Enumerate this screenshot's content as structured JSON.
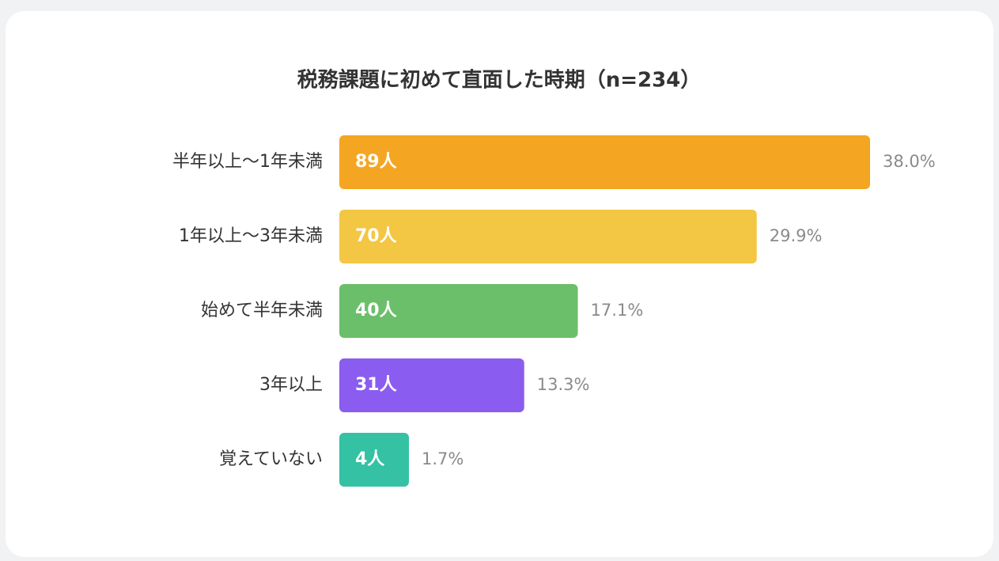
{
  "chart_data": {
    "type": "bar",
    "orientation": "horizontal",
    "title": "税務課題に初めて直面した時期（n=234）",
    "categories": [
      "半年以上〜1年未満",
      "1年以上〜3年未満",
      "始めて半年未満",
      "3年以上",
      "覚えていない"
    ],
    "values": [
      89,
      70,
      40,
      31,
      4
    ],
    "value_labels": [
      "89人",
      "70人",
      "40人",
      "31人",
      "4人"
    ],
    "shares": [
      38.0,
      29.9,
      17.1,
      13.3,
      1.7
    ],
    "share_labels": [
      "38.0%",
      "29.9%",
      "17.1%",
      "13.3%",
      "1.7%"
    ],
    "colors": [
      "#f4a623",
      "#f3c744",
      "#6cbf6a",
      "#8b5cf0",
      "#35c1a4"
    ]
  }
}
